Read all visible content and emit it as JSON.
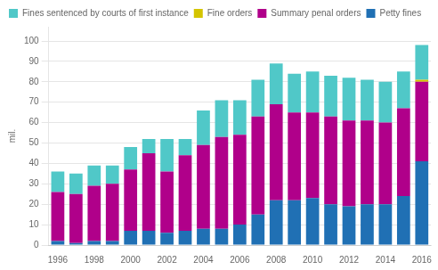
{
  "chart_data": {
    "type": "bar",
    "stacked": true,
    "ylabel": "mil.",
    "categories": [
      "1996",
      null,
      "1998",
      null,
      "2000",
      null,
      "2002",
      null,
      "2004",
      null,
      "2006",
      null,
      "2008",
      null,
      "2010",
      null,
      "2012",
      null,
      "2014",
      null,
      "2016"
    ],
    "series": [
      {
        "name": "Petty fines",
        "color": "#2070b4",
        "values": [
          2,
          1,
          2,
          2,
          7,
          7,
          6,
          7,
          8,
          8,
          10,
          15,
          22,
          22,
          23,
          20,
          19,
          20,
          20,
          24,
          41
        ]
      },
      {
        "name": "Summary penal orders",
        "color": "#b0008a",
        "values": [
          24,
          24,
          27,
          28,
          30,
          38,
          30,
          37,
          41,
          45,
          44,
          48,
          47,
          43,
          42,
          43,
          42,
          41,
          40,
          43,
          39
        ]
      },
      {
        "name": "Fine orders",
        "color": "#d4c400",
        "values": [
          0,
          0,
          0,
          0,
          0,
          0,
          0,
          0,
          0,
          0,
          0,
          0,
          0,
          0,
          0,
          0,
          0,
          0,
          0,
          0,
          1
        ]
      },
      {
        "name": "Fines sentenced by courts of first instance",
        "color": "#50c8c8",
        "values": [
          10,
          10,
          10,
          9,
          11,
          7,
          16,
          8,
          17,
          18,
          17,
          18,
          20,
          19,
          20,
          20,
          21,
          20,
          20,
          18,
          17
        ]
      }
    ],
    "ylim": [
      0,
      107
    ],
    "yticks": [
      0,
      10,
      20,
      30,
      40,
      50,
      60,
      70,
      80,
      90,
      100
    ],
    "grid": true,
    "legend": "upper left"
  }
}
